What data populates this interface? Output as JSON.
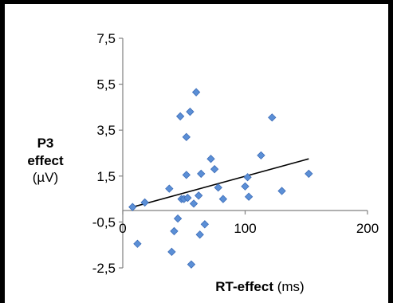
{
  "chart_data": {
    "type": "scatter",
    "ylabel_lines": [
      "P3",
      "effect",
      "(µV)"
    ],
    "xlabel_main": "RT-effect",
    "xlabel_unit": "(ms)",
    "xlim": [
      0,
      200
    ],
    "ylim": [
      -2.5,
      7.5
    ],
    "xticks": [
      {
        "value": 0,
        "label": "0"
      },
      {
        "value": 100,
        "label": "100"
      },
      {
        "value": 200,
        "label": "200"
      }
    ],
    "yticks": [
      {
        "value": 7.5,
        "label": "7,5"
      },
      {
        "value": 5.5,
        "label": "5,5"
      },
      {
        "value": 3.5,
        "label": "3,5"
      },
      {
        "value": 1.5,
        "label": "1,5"
      },
      {
        "value": -0.5,
        "label": "-0,5"
      },
      {
        "value": -2.5,
        "label": "-2,5"
      }
    ],
    "grid": false,
    "legend": "none",
    "marker_color": "#5b8fd6",
    "marker_edge": "#3d6db8",
    "points": [
      [
        8,
        0.15
      ],
      [
        12,
        -1.45
      ],
      [
        18,
        0.35
      ],
      [
        38,
        0.95
      ],
      [
        40,
        -1.8
      ],
      [
        42,
        -0.9
      ],
      [
        45,
        -0.35
      ],
      [
        47,
        4.1
      ],
      [
        48,
        0.5
      ],
      [
        50,
        0.5
      ],
      [
        52,
        1.55
      ],
      [
        52,
        3.2
      ],
      [
        53,
        0.55
      ],
      [
        55,
        4.3
      ],
      [
        56,
        -2.35
      ],
      [
        58,
        0.3
      ],
      [
        60,
        5.15
      ],
      [
        62,
        0.65
      ],
      [
        63,
        -1.05
      ],
      [
        64,
        1.6
      ],
      [
        67,
        -0.6
      ],
      [
        72,
        2.25
      ],
      [
        75,
        1.8
      ],
      [
        78,
        1.0
      ],
      [
        82,
        0.5
      ],
      [
        100,
        1.05
      ],
      [
        102,
        1.45
      ],
      [
        103,
        0.6
      ],
      [
        113,
        2.4
      ],
      [
        122,
        4.05
      ],
      [
        130,
        0.85
      ],
      [
        152,
        1.6
      ]
    ],
    "trendline": {
      "x": [
        8,
        152
      ],
      "y": [
        0.15,
        2.25
      ]
    }
  }
}
